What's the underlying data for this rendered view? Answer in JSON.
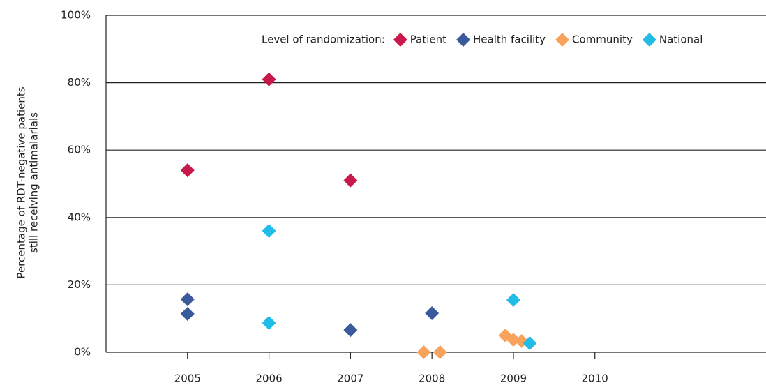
{
  "chart_data": {
    "type": "scatter",
    "ylabel": [
      "Percentage of RDT-negative patients",
      "still receiving antimalarials"
    ],
    "legend_title": "Level of randomization:",
    "xlim": [
      2004,
      2012.1
    ],
    "xticks": [
      2005,
      2006,
      2007,
      2008,
      2009,
      2010
    ],
    "ylim": [
      0,
      100
    ],
    "yticks": [
      {
        "value": 0,
        "label": "0%"
      },
      {
        "value": 20,
        "label": "20%"
      },
      {
        "value": 40,
        "label": "40%"
      },
      {
        "value": 60,
        "label": "60%"
      },
      {
        "value": 80,
        "label": "80%"
      },
      {
        "value": 100,
        "label": "100%"
      }
    ],
    "grid": true,
    "legend": "top-right",
    "series": [
      {
        "name": "Patient",
        "color": "#c8194b",
        "x": [
          2005,
          2006,
          2007
        ],
        "values": [
          54,
          81,
          51
        ]
      },
      {
        "name": "Health facility",
        "color": "#3a5a9c",
        "x": [
          2005,
          2005,
          2007,
          2008
        ],
        "values": [
          15.7,
          11.4,
          6.6,
          11.6
        ]
      },
      {
        "name": "Community",
        "color": "#f7a35c",
        "x": [
          2007.9,
          2008.1,
          2008.9,
          2009,
          2009.1
        ],
        "values": [
          0,
          0,
          5,
          3.7,
          3.3
        ]
      },
      {
        "name": "National",
        "color": "#1fbde8",
        "x": [
          2006,
          2006,
          2009,
          2009.2
        ],
        "values": [
          36,
          8.7,
          15.5,
          2.7
        ]
      }
    ]
  }
}
